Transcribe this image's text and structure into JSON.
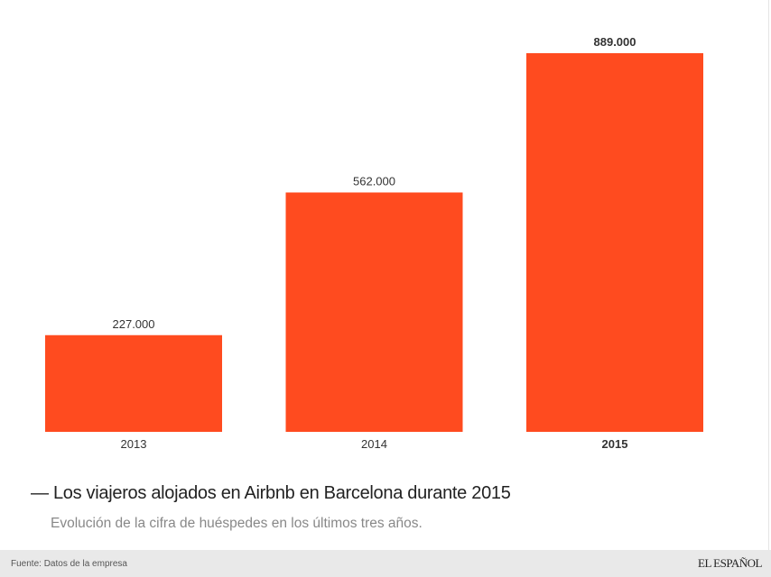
{
  "chart_data": {
    "type": "bar",
    "categories": [
      "2013",
      "2014",
      "2015"
    ],
    "values": [
      227000,
      562000,
      889000
    ],
    "data_labels": [
      "227.000",
      "562.000",
      "889.000"
    ],
    "highlight_category": "2015",
    "title": "— Los viajeros alojados en Airbnb en Barcelona durante 2015",
    "subtitle": "Evolución de la cifra de huéspedes en los últimos tres años.",
    "xlabel": "",
    "ylabel": "",
    "ylim": [
      0,
      889000
    ],
    "grid": false,
    "bar_color": "#ff4b1f"
  },
  "footer": {
    "source": "Fuente: Datos de la empresa",
    "logo": "EL ESPAÑOL"
  }
}
